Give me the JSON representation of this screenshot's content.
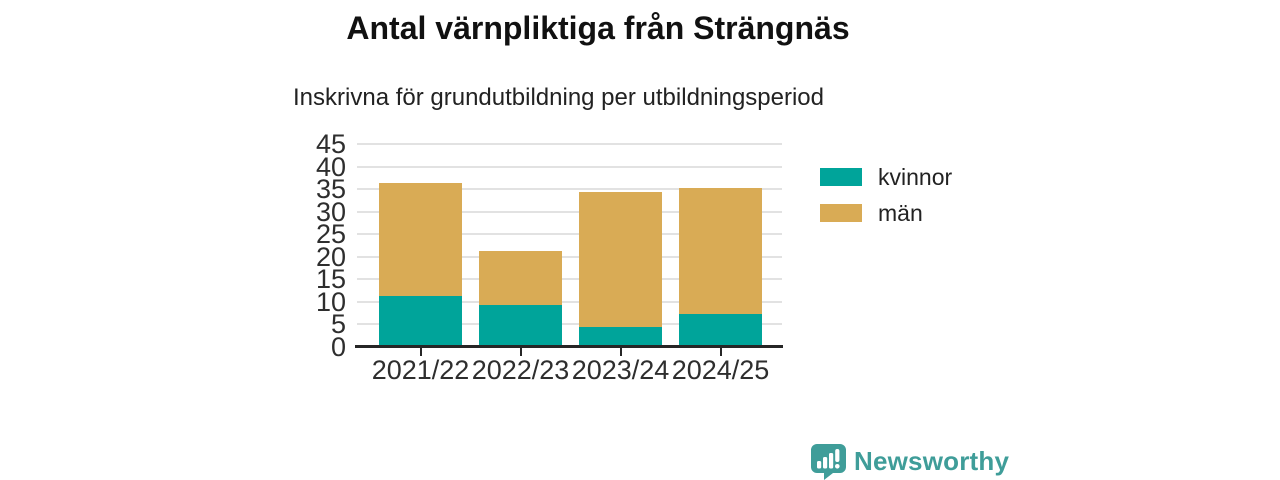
{
  "header": {
    "title": "Antal värnpliktiga från Strängnäs",
    "subtitle": "Inskrivna för grundutbildning per utbildningsperiod"
  },
  "chart_data": {
    "type": "bar",
    "stacked": true,
    "title": "Antal värnpliktiga från Strängnäs",
    "subtitle": "Inskrivna för grundutbildning per utbildningsperiod",
    "categories": [
      "2021/22",
      "2022/23",
      "2023/24",
      "2024/25"
    ],
    "series": [
      {
        "name": "kvinnor",
        "color": "#00a49a",
        "values": [
          11,
          9,
          4,
          7
        ]
      },
      {
        "name": "män",
        "color": "#d9ab55",
        "values": [
          25,
          12,
          30,
          28
        ]
      }
    ],
    "totals": [
      36,
      21,
      34,
      35
    ],
    "xlabel": "",
    "ylabel": "",
    "ylim": [
      0,
      45
    ],
    "yticks": [
      0,
      5,
      10,
      15,
      20,
      25,
      30,
      35,
      40,
      45
    ],
    "grid": "horizontal",
    "legend_position": "right"
  },
  "legend": {
    "items": [
      {
        "label": "kvinnor",
        "color": "#00a49a"
      },
      {
        "label": "män",
        "color": "#d9ab55"
      }
    ]
  },
  "brand": {
    "name": "Newsworthy",
    "color": "#3f9d99",
    "icon": "bar-chart-speech-bubble-icon"
  }
}
